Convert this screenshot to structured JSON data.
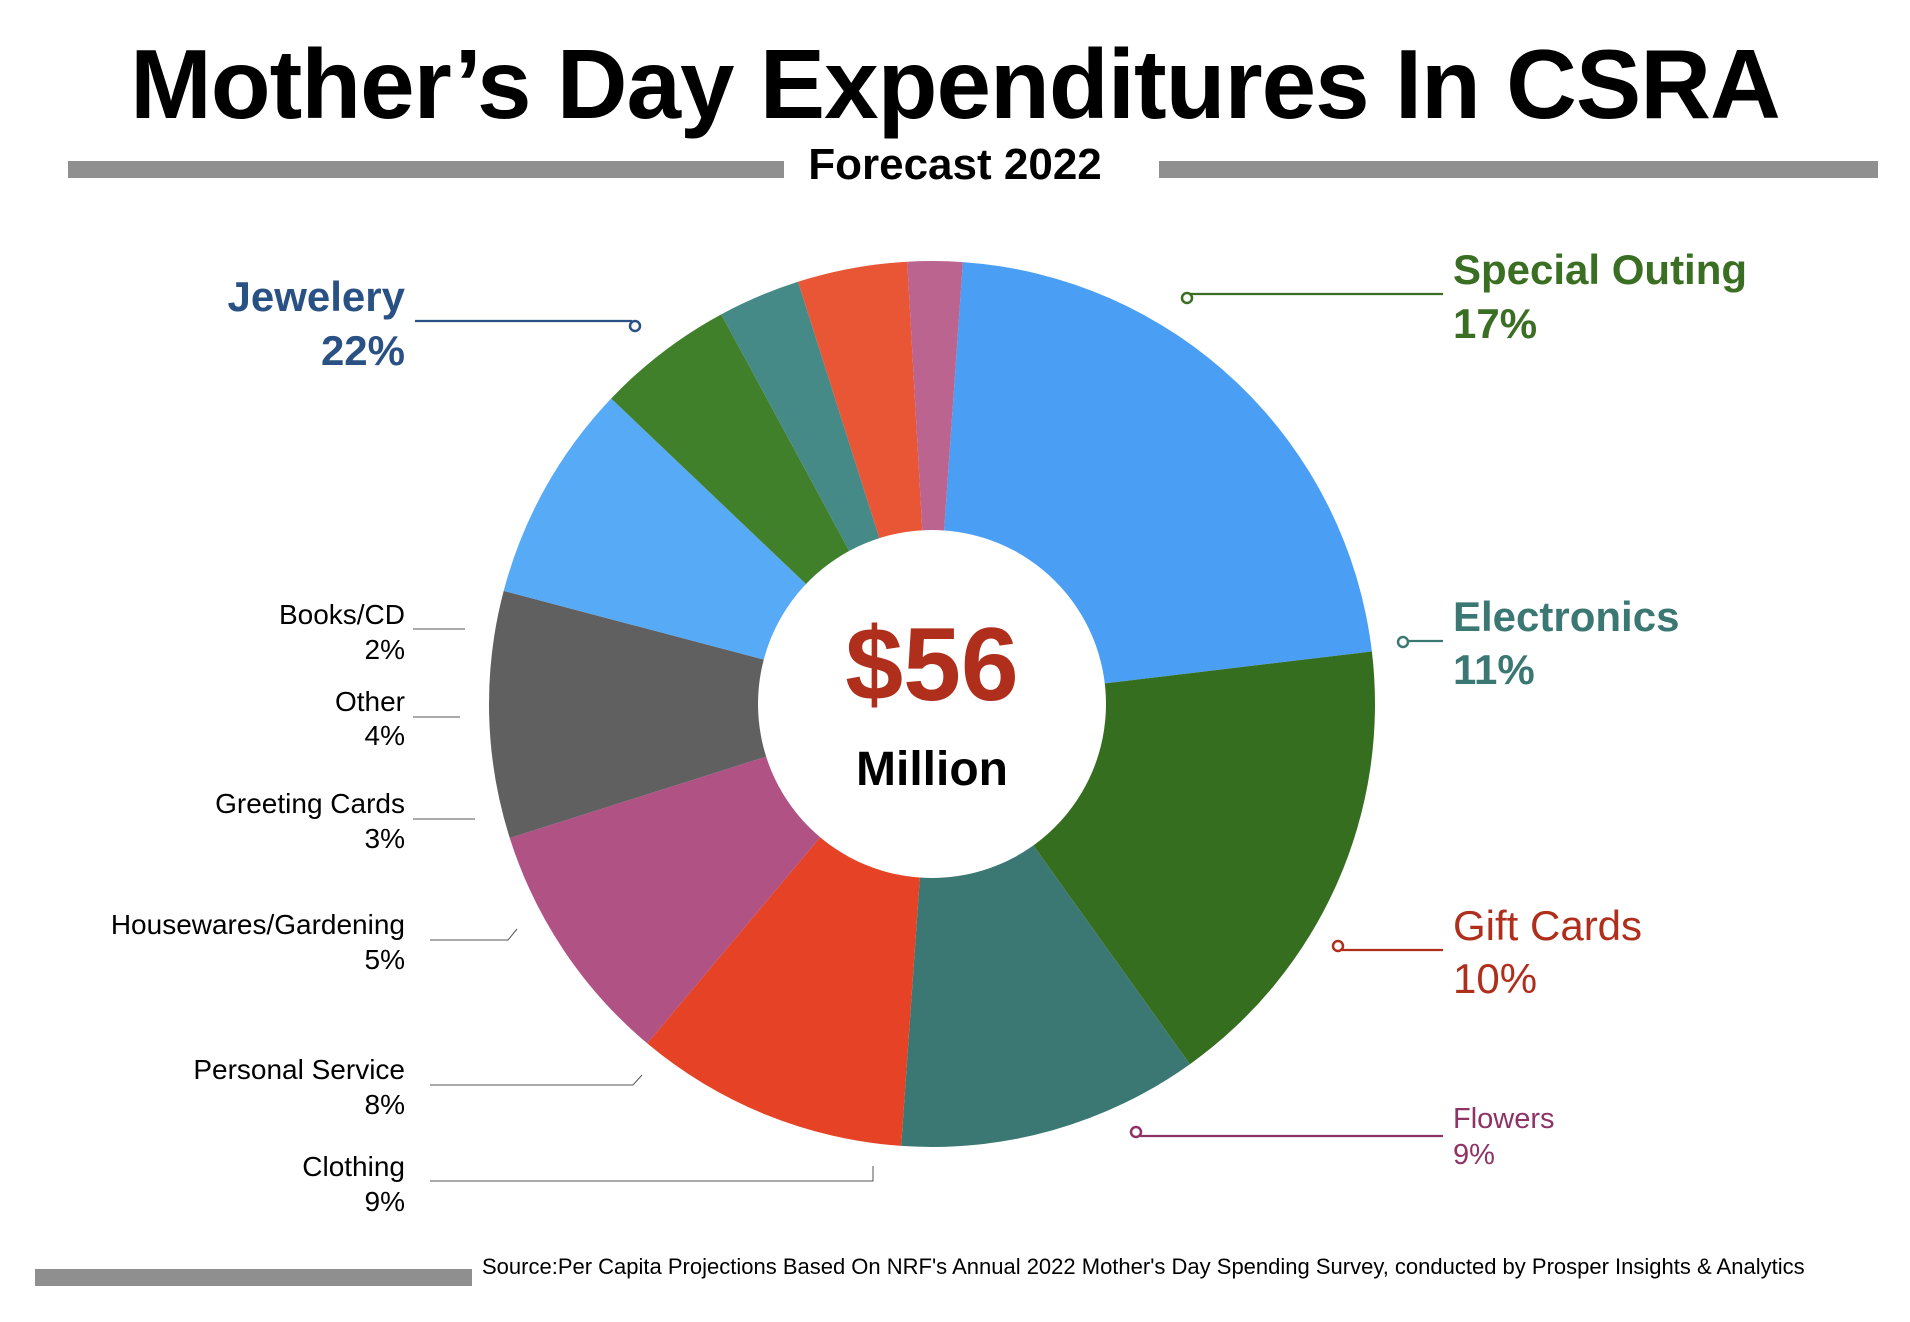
{
  "title": "Mother’s Day Expenditures In CSRA",
  "subtitle": "Forecast 2022",
  "center": {
    "value": "$56",
    "unit": "Million"
  },
  "source": "Source:Per Capita Projections Based On NRF's Annual 2022 Mother's Day Spending Survey, conducted by Prosper Insights & Analytics",
  "chart_data": {
    "type": "pie",
    "style": "donut",
    "categories": [
      "Jewelery",
      "Special Outing",
      "Electronics",
      "Gift Cards",
      "Flowers",
      "Clothing",
      "Personal Service",
      "Housewares/Gardening",
      "Greeting Cards",
      "Other",
      "Books/CD"
    ],
    "values": [
      22,
      17,
      11,
      10,
      9,
      9,
      8,
      5,
      3,
      4,
      2
    ],
    "value_labels": [
      "22%",
      "17%",
      "11%",
      "10%",
      "9%",
      "9%",
      "8%",
      "5%",
      "3%",
      "4%",
      "2%"
    ],
    "slice_colors": [
      "#4a9ff5",
      "#356e1f",
      "#3b7874",
      "#e64326",
      "#b05283",
      "#606060",
      "#56aaf6",
      "#41802a",
      "#458a87",
      "#e85636",
      "#bb6490"
    ],
    "label_colors": [
      "#2a5184",
      "#3a6e22",
      "#3b7874",
      "#b02f1c",
      "#8e3366",
      "#000000",
      "#000000",
      "#000000",
      "#000000",
      "#000000",
      "#000000"
    ],
    "center_value_color": "#b02f1c"
  }
}
